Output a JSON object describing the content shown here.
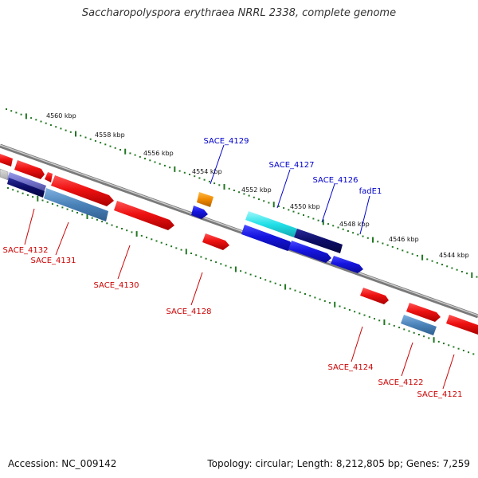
{
  "title": "Saccharopolyspora erythraea NRRL 2338, complete genome",
  "footer": {
    "accession": "Accession: NC_009142",
    "summary": "Topology: circular; Length: 8,212,805 bp; Genes: 7,259"
  },
  "colors": {
    "strand_red": "#ee1111",
    "strand_blue": "#1111dd",
    "steel": "#4a82b8",
    "navy": "#0c0c66",
    "cyan": "#22e0e8",
    "orange": "#ee8800",
    "tick_green": "#227722",
    "label_red": "#cc0000",
    "label_blue": "#0000cc"
  },
  "scale": {
    "labels": [
      "4560 kbp",
      "4558 kbp",
      "4556 kbp",
      "4554 kbp",
      "4552 kbp",
      "4550 kbp",
      "4548 kbp",
      "4546 kbp",
      "4544 kbp"
    ]
  },
  "genes": {
    "above": [
      "SACE_4129",
      "SACE_4127",
      "SACE_4126",
      "fadE1"
    ],
    "below": [
      "SACE_4132",
      "SACE_4131",
      "SACE_4130",
      "SACE_4128",
      "SACE_4124",
      "SACE_4122",
      "SACE_4121"
    ]
  }
}
